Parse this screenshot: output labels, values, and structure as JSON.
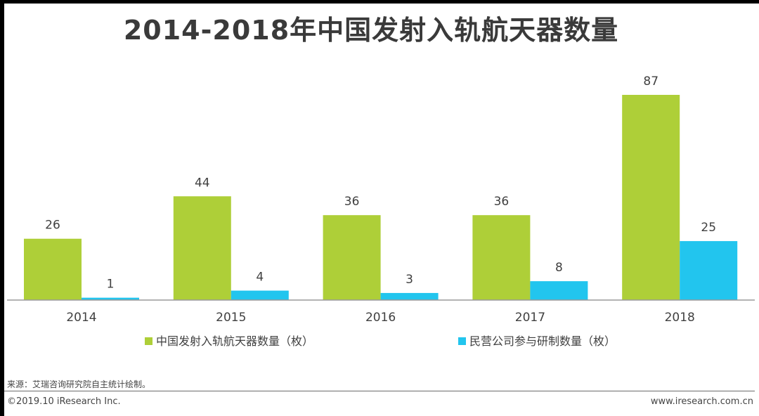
{
  "title": "2014-2018年中国发射入轨航天器数量",
  "source": "来源：艾瑞咨询研究院自主统计绘制。",
  "copyright": "©2019.10 iResearch Inc.",
  "website": "www.iresearch.com.cn",
  "chart_data": {
    "type": "bar",
    "title": "2014-2018年中国发射入轨航天器数量",
    "categories": [
      "2014",
      "2015",
      "2016",
      "2017",
      "2018"
    ],
    "series": [
      {
        "name": "中国发射入轨航天器数量（枚）",
        "values": [
          26,
          44,
          36,
          36,
          87
        ],
        "color": "#aecf38"
      },
      {
        "name": "民营公司参与研制数量（枚）",
        "values": [
          1,
          4,
          3,
          8,
          25
        ],
        "color": "#22c5ee"
      }
    ],
    "ylim": [
      0,
      87
    ],
    "grid": false,
    "legend": "bottom-center",
    "data_labels": true
  }
}
